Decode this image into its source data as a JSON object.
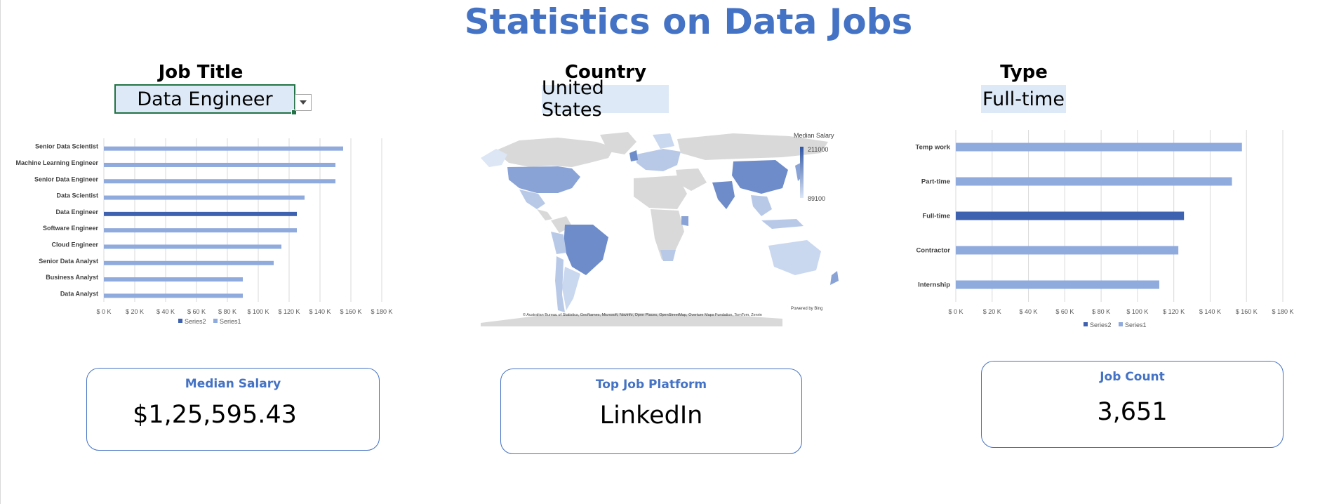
{
  "page_title": "Statistics on Data Jobs",
  "filters": {
    "job_title": {
      "label": "Job Title",
      "value": "Data Engineer"
    },
    "country": {
      "label": "Country",
      "value": "United States"
    },
    "type": {
      "label": "Type",
      "value": "Full-time"
    }
  },
  "colors": {
    "accent": "#4472c4",
    "series1": "#8faadc",
    "series2": "#3f62b0",
    "map_high": "#2f55a4",
    "map_low": "#dce6f5",
    "map_none": "#d9d9d9"
  },
  "cards": {
    "median_salary": {
      "title": "Median Salary",
      "value": "$1,25,595.43"
    },
    "top_platform": {
      "title": "Top Job Platform",
      "value": "LinkedIn"
    },
    "job_count": {
      "title": "Job Count",
      "value": "3,651"
    }
  },
  "map": {
    "legend_title": "Median Salary",
    "legend_max": "211000",
    "legend_min": "89100",
    "powered_by": "Powered by Bing",
    "credits": "© Australian Bureau of Statistics, GeoNames, Microsoft, Navinfo, Open Places, OpenStreetMap, Overture Maps Fundation, TomTom, Zenrin"
  },
  "chart_data": [
    {
      "type": "bar",
      "orientation": "horizontal",
      "categories": [
        "Senior Data Scientist",
        "Machine Learning Engineer",
        "Senior Data Engineer",
        "Data Scientist",
        "Data Engineer",
        "Software Engineer",
        "Cloud Engineer",
        "Senior Data Analyst",
        "Business Analyst",
        "Data Analyst"
      ],
      "series": [
        {
          "name": "Series1",
          "values": [
            155000,
            150000,
            150000,
            130000,
            null,
            125000,
            115000,
            110000,
            90000,
            90000
          ]
        },
        {
          "name": "Series2",
          "values": [
            null,
            null,
            null,
            null,
            125000,
            null,
            null,
            null,
            null,
            null
          ]
        }
      ],
      "xlim": [
        0,
        180000
      ],
      "xticks": [
        "$ 0 K",
        "$ 20 K",
        "$ 40 K",
        "$ 60 K",
        "$ 80 K",
        "$ 100 K",
        "$ 120 K",
        "$ 140 K",
        "$ 160 K",
        "$ 180 K"
      ],
      "legend": [
        "Series2",
        "Series1"
      ],
      "legend_position": "bottom",
      "grid": true
    },
    {
      "type": "bar",
      "orientation": "horizontal",
      "categories": [
        "Temp work",
        "Part-time",
        "Full-time",
        "Contractor",
        "Internship"
      ],
      "series": [
        {
          "name": "Series1",
          "values": [
            157500,
            152000,
            null,
            122500,
            112000
          ]
        },
        {
          "name": "Series2",
          "values": [
            null,
            null,
            125600,
            null,
            null
          ]
        }
      ],
      "xlim": [
        0,
        180000
      ],
      "xticks": [
        "$ 0 K",
        "$ 20 K",
        "$ 40 K",
        "$ 60 K",
        "$ 80 K",
        "$ 100 K",
        "$ 120 K",
        "$ 140 K",
        "$ 160 K",
        "$ 180 K"
      ],
      "legend": [
        "Series2",
        "Series1"
      ],
      "legend_position": "bottom",
      "grid": true
    }
  ]
}
